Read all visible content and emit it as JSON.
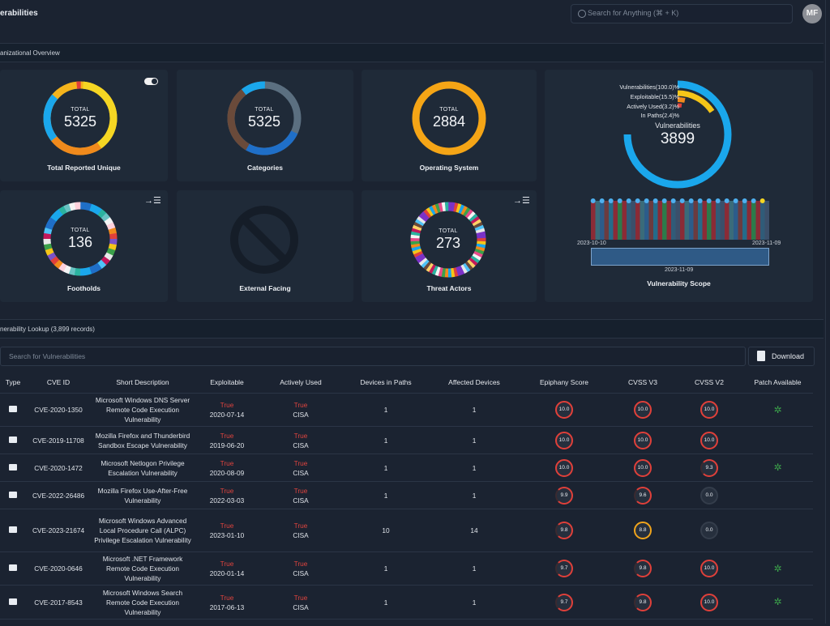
{
  "header": {
    "title": "erabilities",
    "search_placeholder": "Search for Anything (⌘ + K)",
    "avatar_initials": "MF"
  },
  "overview": {
    "section_title": "anizational Overview",
    "cards": {
      "total_reported": {
        "total_label": "TOTAL",
        "total": "5325",
        "label": "Total Reported Unique"
      },
      "categories": {
        "total_label": "TOTAL",
        "total": "5325",
        "label": "Categories"
      },
      "operating_system": {
        "total_label": "TOTAL",
        "total": "2884",
        "label": "Operating System"
      },
      "footholds": {
        "total_label": "TOTAL",
        "total": "136",
        "label": "Footholds"
      },
      "external_facing": {
        "label": "External Facing"
      },
      "threat_actors": {
        "total_label": "TOTAL",
        "total": "273",
        "label": "Threat Actors"
      }
    },
    "vulnerability_scope": {
      "legend": [
        "Vulnerabilities(100.0)%",
        "Exploitable(15.5)%",
        "Actively Used(3.2)%",
        "In Paths(2.4)%"
      ],
      "center_label": "Vulnerabilities",
      "center_value": "3899",
      "date_start": "2023-10-10",
      "date_end": "2023-11-09",
      "brush_date": "2023-11-09",
      "label": "Vulnerability Scope",
      "colors": {
        "vulnerabilities": "#1aa7ec",
        "exploitable": "#f5c518",
        "actively_used": "#f08a1c",
        "in_paths": "#e0403a"
      }
    }
  },
  "lookup": {
    "section_title": "nerability Lookup (3,899 records)",
    "search_placeholder": "Search for Vulnerabilities",
    "download_label": "Download",
    "columns": [
      "Type",
      "CVE ID",
      "Short Description",
      "Exploitable",
      "Actively Used",
      "Devices in Paths",
      "Affected Devices",
      "Epiphany Score",
      "CVSS V3",
      "CVSS V2",
      "Patch Available"
    ],
    "rows": [
      {
        "cve": "CVE-2020-1350",
        "desc": "Microsoft Windows DNS Server Remote Code Execution Vulnerability",
        "exploitable": "True",
        "exploit_date": "2020-07-14",
        "actively": "True",
        "actively_src": "CISA",
        "devices_paths": "1",
        "affected": "1",
        "epiphany": "10.0",
        "cvss3": "10.0",
        "cvss2": "10.0",
        "patch": true
      },
      {
        "cve": "CVE-2019-11708",
        "desc": "Mozilla Firefox and Thunderbird Sandbox Escape Vulnerability",
        "exploitable": "True",
        "exploit_date": "2019-06-20",
        "actively": "True",
        "actively_src": "CISA",
        "devices_paths": "1",
        "affected": "1",
        "epiphany": "10.0",
        "cvss3": "10.0",
        "cvss2": "10.0",
        "patch": false
      },
      {
        "cve": "CVE-2020-1472",
        "desc": "Microsoft Netlogon Privilege Escalation Vulnerability",
        "exploitable": "True",
        "exploit_date": "2020-08-09",
        "actively": "True",
        "actively_src": "CISA",
        "devices_paths": "1",
        "affected": "1",
        "epiphany": "10.0",
        "cvss3": "10.0",
        "cvss2": "9.3",
        "patch": true
      },
      {
        "cve": "CVE-2022-26486",
        "desc": "Mozilla Firefox Use-After-Free Vulnerability",
        "exploitable": "True",
        "exploit_date": "2022-03-03",
        "actively": "True",
        "actively_src": "CISA",
        "devices_paths": "1",
        "affected": "1",
        "epiphany": "9.9",
        "cvss3": "9.6",
        "cvss2": "0.0",
        "patch": false
      },
      {
        "cve": "CVE-2023-21674",
        "desc": "Microsoft Windows Advanced Local Procedure Call (ALPC) Privilege Escalation Vulnerability",
        "exploitable": "True",
        "exploit_date": "2023-01-10",
        "actively": "True",
        "actively_src": "CISA",
        "devices_paths": "10",
        "affected": "14",
        "epiphany": "9.8",
        "cvss3": "8.8",
        "cvss2": "0.0",
        "patch": false
      },
      {
        "cve": "CVE-2020-0646",
        "desc": "Microsoft .NET Framework Remote Code Execution Vulnerability",
        "exploitable": "True",
        "exploit_date": "2020-01-14",
        "actively": "True",
        "actively_src": "CISA",
        "devices_paths": "1",
        "affected": "1",
        "epiphany": "9.7",
        "cvss3": "9.8",
        "cvss2": "10.0",
        "patch": true
      },
      {
        "cve": "CVE-2017-8543",
        "desc": "Microsoft Windows Search Remote Code Execution Vulnerability",
        "exploitable": "True",
        "exploit_date": "2017-06-13",
        "actively": "True",
        "actively_src": "CISA",
        "devices_paths": "1",
        "affected": "1",
        "epiphany": "9.7",
        "cvss3": "9.8",
        "cvss2": "10.0",
        "patch": true
      }
    ]
  }
}
